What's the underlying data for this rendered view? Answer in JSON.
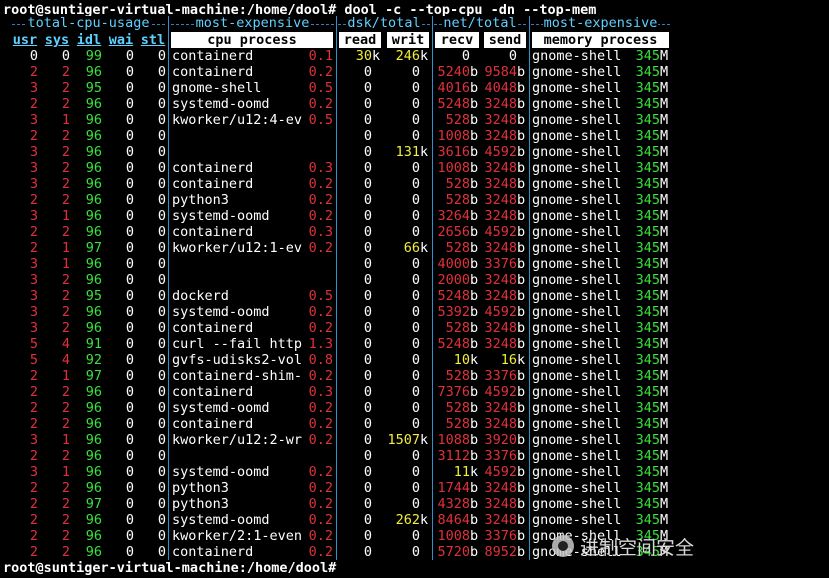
{
  "colors": {
    "background": "#000000",
    "header": "#5fd0ff",
    "default": "#ffffff",
    "red": "#e0313a",
    "green": "#3ce03c",
    "yellow": "#f2ee3a"
  },
  "prompt_top": "root@suntiger-virtual-machine:/home/dool# dool -c --top-cpu -dn --top-mem",
  "prompt_bottom": "root@suntiger-virtual-machine:/home/dool#",
  "group_headers": {
    "cpu": "total-cpu-usage",
    "proc": "most-expensive",
    "dsk": "dsk/total",
    "net": "net/total",
    "mem": "most-expensive"
  },
  "column_headers": {
    "usr": "usr",
    "sys": "sys",
    "idl": "idl",
    "wai": "wai",
    "stl": "stl",
    "cpu_process": "cpu process",
    "read": "read",
    "writ": "writ",
    "recv": "recv",
    "send": "send",
    "memory_process": "memory process"
  },
  "rows": [
    {
      "usr": "0",
      "sys": "0",
      "idl": "99",
      "wai": "0",
      "stl": "0",
      "proc": "containerd",
      "pct": "0.1",
      "read": "30",
      "read_u": "k",
      "writ": "246",
      "writ_u": "k",
      "recv": "0",
      "recv_u": "",
      "send": "0",
      "send_u": "",
      "mem": "gnome-shell",
      "memv": "345",
      "mem_u": "M",
      "first": true
    },
    {
      "usr": "2",
      "sys": "2",
      "idl": "96",
      "wai": "0",
      "stl": "0",
      "proc": "containerd",
      "pct": "0.2",
      "read": "0",
      "writ": "0",
      "recv": "5240",
      "recv_u": "b",
      "send": "9584",
      "send_u": "b",
      "mem": "gnome-shell",
      "memv": "345",
      "mem_u": "M"
    },
    {
      "usr": "3",
      "sys": "2",
      "idl": "95",
      "wai": "0",
      "stl": "0",
      "proc": "gnome-shell",
      "pct": "0.5",
      "read": "0",
      "writ": "0",
      "recv": "4016",
      "recv_u": "b",
      "send": "4048",
      "send_u": "b",
      "mem": "gnome-shell",
      "memv": "345",
      "mem_u": "M"
    },
    {
      "usr": "2",
      "sys": "2",
      "idl": "96",
      "wai": "0",
      "stl": "0",
      "proc": "systemd-oomd",
      "pct": "0.2",
      "read": "0",
      "writ": "0",
      "recv": "5248",
      "recv_u": "b",
      "send": "3248",
      "send_u": "b",
      "mem": "gnome-shell",
      "memv": "345",
      "mem_u": "M"
    },
    {
      "usr": "3",
      "sys": "1",
      "idl": "96",
      "wai": "0",
      "stl": "0",
      "proc": "kworker/u12:4-ev",
      "pct": "0.5",
      "read": "0",
      "writ": "0",
      "recv": "528",
      "recv_u": "b",
      "send": "3248",
      "send_u": "b",
      "mem": "gnome-shell",
      "memv": "345",
      "mem_u": "M"
    },
    {
      "usr": "2",
      "sys": "2",
      "idl": "96",
      "wai": "0",
      "stl": "0",
      "proc": "",
      "pct": "",
      "read": "0",
      "writ": "0",
      "recv": "1008",
      "recv_u": "b",
      "send": "3248",
      "send_u": "b",
      "mem": "gnome-shell",
      "memv": "345",
      "mem_u": "M"
    },
    {
      "usr": "3",
      "sys": "2",
      "idl": "96",
      "wai": "0",
      "stl": "0",
      "proc": "",
      "pct": "",
      "read": "0",
      "writ": "131",
      "writ_u": "k",
      "recv": "3616",
      "recv_u": "b",
      "send": "4592",
      "send_u": "b",
      "mem": "gnome-shell",
      "memv": "345",
      "mem_u": "M"
    },
    {
      "usr": "3",
      "sys": "2",
      "idl": "96",
      "wai": "0",
      "stl": "0",
      "proc": "containerd",
      "pct": "0.3",
      "read": "0",
      "writ": "0",
      "recv": "1008",
      "recv_u": "b",
      "send": "3248",
      "send_u": "b",
      "mem": "gnome-shell",
      "memv": "345",
      "mem_u": "M"
    },
    {
      "usr": "3",
      "sys": "2",
      "idl": "96",
      "wai": "0",
      "stl": "0",
      "proc": "containerd",
      "pct": "0.2",
      "read": "0",
      "writ": "0",
      "recv": "528",
      "recv_u": "b",
      "send": "3248",
      "send_u": "b",
      "mem": "gnome-shell",
      "memv": "345",
      "mem_u": "M"
    },
    {
      "usr": "2",
      "sys": "2",
      "idl": "96",
      "wai": "0",
      "stl": "0",
      "proc": "python3",
      "pct": "0.2",
      "read": "0",
      "writ": "0",
      "recv": "528",
      "recv_u": "b",
      "send": "3248",
      "send_u": "b",
      "mem": "gnome-shell",
      "memv": "345",
      "mem_u": "M"
    },
    {
      "usr": "3",
      "sys": "1",
      "idl": "96",
      "wai": "0",
      "stl": "0",
      "proc": "systemd-oomd",
      "pct": "0.2",
      "read": "0",
      "writ": "0",
      "recv": "3264",
      "recv_u": "b",
      "send": "3248",
      "send_u": "b",
      "mem": "gnome-shell",
      "memv": "345",
      "mem_u": "M"
    },
    {
      "usr": "2",
      "sys": "2",
      "idl": "96",
      "wai": "0",
      "stl": "0",
      "proc": "containerd",
      "pct": "0.3",
      "read": "0",
      "writ": "0",
      "recv": "2656",
      "recv_u": "b",
      "send": "4592",
      "send_u": "b",
      "mem": "gnome-shell",
      "memv": "345",
      "mem_u": "M"
    },
    {
      "usr": "2",
      "sys": "1",
      "idl": "97",
      "wai": "0",
      "stl": "0",
      "proc": "kworker/u12:1-ev",
      "pct": "0.2",
      "read": "0",
      "writ": "66",
      "writ_u": "k",
      "recv": "528",
      "recv_u": "b",
      "send": "3248",
      "send_u": "b",
      "mem": "gnome-shell",
      "memv": "345",
      "mem_u": "M"
    },
    {
      "usr": "3",
      "sys": "1",
      "idl": "96",
      "wai": "0",
      "stl": "0",
      "proc": "",
      "pct": "",
      "read": "0",
      "writ": "0",
      "recv": "4000",
      "recv_u": "b",
      "send": "3376",
      "send_u": "b",
      "mem": "gnome-shell",
      "memv": "345",
      "mem_u": "M"
    },
    {
      "usr": "3",
      "sys": "2",
      "idl": "96",
      "wai": "0",
      "stl": "0",
      "proc": "",
      "pct": "",
      "read": "0",
      "writ": "0",
      "recv": "2000",
      "recv_u": "b",
      "send": "3248",
      "send_u": "b",
      "mem": "gnome-shell",
      "memv": "345",
      "mem_u": "M"
    },
    {
      "usr": "3",
      "sys": "2",
      "idl": "95",
      "wai": "0",
      "stl": "0",
      "proc": "dockerd",
      "pct": "0.5",
      "read": "0",
      "writ": "0",
      "recv": "5248",
      "recv_u": "b",
      "send": "3248",
      "send_u": "b",
      "mem": "gnome-shell",
      "memv": "345",
      "mem_u": "M"
    },
    {
      "usr": "3",
      "sys": "2",
      "idl": "96",
      "wai": "0",
      "stl": "0",
      "proc": "systemd-oomd",
      "pct": "0.2",
      "read": "0",
      "writ": "0",
      "recv": "5392",
      "recv_u": "b",
      "send": "4592",
      "send_u": "b",
      "mem": "gnome-shell",
      "memv": "345",
      "mem_u": "M"
    },
    {
      "usr": "3",
      "sys": "2",
      "idl": "96",
      "wai": "0",
      "stl": "0",
      "proc": "containerd",
      "pct": "0.2",
      "read": "0",
      "writ": "0",
      "recv": "528",
      "recv_u": "b",
      "send": "3248",
      "send_u": "b",
      "mem": "gnome-shell",
      "memv": "345",
      "mem_u": "M"
    },
    {
      "usr": "5",
      "sys": "4",
      "idl": "91",
      "wai": "0",
      "stl": "0",
      "proc": "curl --fail http",
      "pct": "1.3",
      "read": "0",
      "writ": "0",
      "recv": "5248",
      "recv_u": "b",
      "send": "3248",
      "send_u": "b",
      "mem": "gnome-shell",
      "memv": "345",
      "mem_u": "M"
    },
    {
      "usr": "5",
      "sys": "4",
      "idl": "92",
      "wai": "0",
      "stl": "0",
      "proc": "gvfs-udisks2-vol",
      "pct": "0.8",
      "read": "0",
      "writ": "0",
      "recv": "10",
      "recv_u": "k",
      "send": "16",
      "send_u": "k",
      "mem": "gnome-shell",
      "memv": "345",
      "mem_u": "M"
    },
    {
      "usr": "2",
      "sys": "1",
      "idl": "97",
      "wai": "0",
      "stl": "0",
      "proc": "containerd-shim-",
      "pct": "0.2",
      "read": "0",
      "writ": "0",
      "recv": "528",
      "recv_u": "b",
      "send": "3376",
      "send_u": "b",
      "mem": "gnome-shell",
      "memv": "345",
      "mem_u": "M"
    },
    {
      "usr": "2",
      "sys": "2",
      "idl": "96",
      "wai": "0",
      "stl": "0",
      "proc": "containerd",
      "pct": "0.3",
      "read": "0",
      "writ": "0",
      "recv": "7376",
      "recv_u": "b",
      "send": "4592",
      "send_u": "b",
      "mem": "gnome-shell",
      "memv": "345",
      "mem_u": "M"
    },
    {
      "usr": "2",
      "sys": "2",
      "idl": "96",
      "wai": "0",
      "stl": "0",
      "proc": "systemd-oomd",
      "pct": "0.2",
      "read": "0",
      "writ": "0",
      "recv": "528",
      "recv_u": "b",
      "send": "3248",
      "send_u": "b",
      "mem": "gnome-shell",
      "memv": "345",
      "mem_u": "M"
    },
    {
      "usr": "2",
      "sys": "2",
      "idl": "96",
      "wai": "0",
      "stl": "0",
      "proc": "containerd",
      "pct": "0.2",
      "read": "0",
      "writ": "0",
      "recv": "528",
      "recv_u": "b",
      "send": "3248",
      "send_u": "b",
      "mem": "gnome-shell",
      "memv": "345",
      "mem_u": "M"
    },
    {
      "usr": "3",
      "sys": "1",
      "idl": "96",
      "wai": "0",
      "stl": "0",
      "proc": "kworker/u12:2-wr",
      "pct": "0.2",
      "read": "0",
      "writ": "1507",
      "writ_u": "k",
      "recv": "1088",
      "recv_u": "b",
      "send": "3920",
      "send_u": "b",
      "mem": "gnome-shell",
      "memv": "345",
      "mem_u": "M"
    },
    {
      "usr": "2",
      "sys": "2",
      "idl": "96",
      "wai": "0",
      "stl": "0",
      "proc": "",
      "pct": "",
      "read": "0",
      "writ": "0",
      "recv": "3112",
      "recv_u": "b",
      "send": "3376",
      "send_u": "b",
      "mem": "gnome-shell",
      "memv": "345",
      "mem_u": "M"
    },
    {
      "usr": "3",
      "sys": "1",
      "idl": "96",
      "wai": "0",
      "stl": "0",
      "proc": "systemd-oomd",
      "pct": "0.2",
      "read": "0",
      "writ": "0",
      "recv": "11",
      "recv_u": "k",
      "send": "4592",
      "send_u": "b",
      "mem": "gnome-shell",
      "memv": "345",
      "mem_u": "M"
    },
    {
      "usr": "2",
      "sys": "2",
      "idl": "96",
      "wai": "0",
      "stl": "0",
      "proc": "python3",
      "pct": "0.2",
      "read": "0",
      "writ": "0",
      "recv": "1744",
      "recv_u": "b",
      "send": "3248",
      "send_u": "b",
      "mem": "gnome-shell",
      "memv": "345",
      "mem_u": "M"
    },
    {
      "usr": "2",
      "sys": "2",
      "idl": "97",
      "wai": "0",
      "stl": "0",
      "proc": "python3",
      "pct": "0.2",
      "read": "0",
      "writ": "0",
      "recv": "4328",
      "recv_u": "b",
      "send": "3248",
      "send_u": "b",
      "mem": "gnome-shell",
      "memv": "345",
      "mem_u": "M"
    },
    {
      "usr": "2",
      "sys": "2",
      "idl": "96",
      "wai": "0",
      "stl": "0",
      "proc": "systemd-oomd",
      "pct": "0.2",
      "read": "0",
      "writ": "262",
      "writ_u": "k",
      "recv": "8464",
      "recv_u": "b",
      "send": "3248",
      "send_u": "b",
      "mem": "gnome-shell",
      "memv": "345",
      "mem_u": "M"
    },
    {
      "usr": "2",
      "sys": "2",
      "idl": "96",
      "wai": "0",
      "stl": "0",
      "proc": "kworker/2:1-even",
      "pct": "0.2",
      "read": "0",
      "writ": "0",
      "recv": "1008",
      "recv_u": "b",
      "send": "3376",
      "send_u": "b",
      "mem": "gnome-shell",
      "memv": "345",
      "mem_u": "M"
    },
    {
      "usr": "2",
      "sys": "2",
      "idl": "96",
      "wai": "0",
      "stl": "0",
      "proc": "containerd",
      "pct": "0.2",
      "read": "0",
      "writ": "0",
      "recv": "5720",
      "recv_u": "b",
      "send": "8952",
      "send_u": "b",
      "mem": "gnome-shell",
      "memv": "345",
      "mem_u": "M"
    }
  ],
  "watermark": {
    "text": "进制空间安全",
    "icon": "wechat-icon"
  }
}
